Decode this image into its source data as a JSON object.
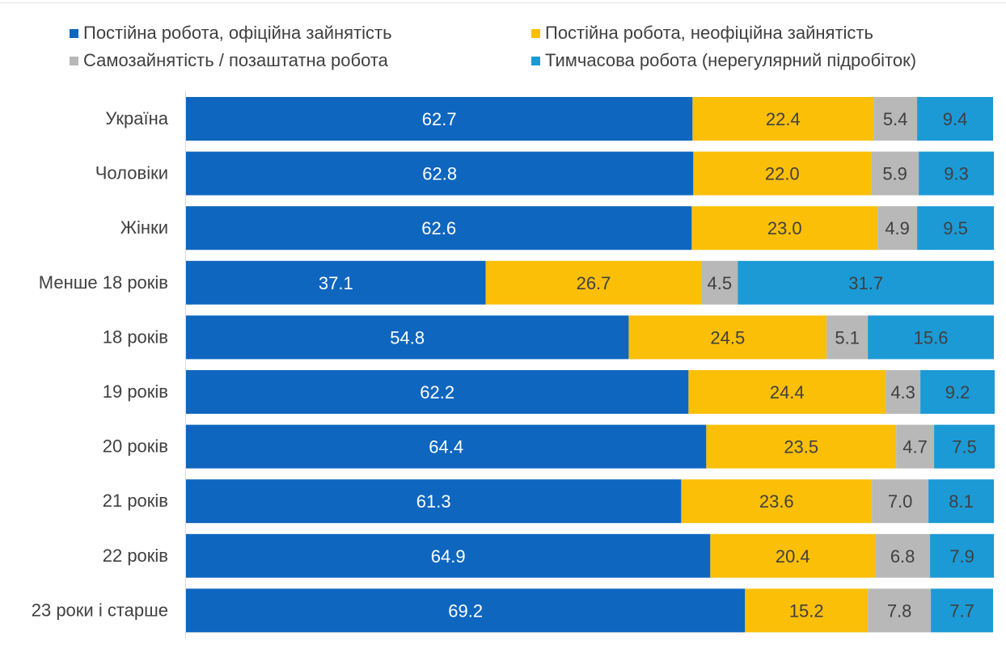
{
  "chart_data": {
    "type": "bar",
    "orientation": "horizontal",
    "stacked": true,
    "percent": true,
    "xlim": [
      0,
      100
    ],
    "grid": false,
    "legend_position": "top",
    "categories": [
      "Україна",
      "Чоловіки",
      "Жінки",
      "Менше 18 років",
      "18 років",
      "19 років",
      "20 років",
      "21 років",
      "22 років",
      "23 роки і старше"
    ],
    "series": [
      {
        "name": "Постійна робота, офіційна зайнятість",
        "color": "#0e66bf",
        "label_color": "#ffffff",
        "values": [
          62.7,
          62.8,
          62.6,
          37.1,
          54.8,
          62.2,
          64.4,
          61.3,
          64.9,
          69.2
        ],
        "labels": [
          "62.7",
          "62.8",
          "62.6",
          "37.1",
          "54.8",
          "62.2",
          "64.4",
          "61.3",
          "64.9",
          "69.2"
        ]
      },
      {
        "name": "Постійна робота, неофіційна зайнятість",
        "color": "#fbbf08",
        "label_color": "#404040",
        "values": [
          22.4,
          22.0,
          23.0,
          26.7,
          24.5,
          24.4,
          23.5,
          23.6,
          20.4,
          15.2
        ],
        "labels": [
          "22.4",
          "22.0",
          "23.0",
          "26.7",
          "24.5",
          "24.4",
          "23.5",
          "23.6",
          "20.4",
          "15.2"
        ]
      },
      {
        "name": "Самозайнятість / позаштатна робота",
        "color": "#b8b8b8",
        "label_color": "#404040",
        "values": [
          5.4,
          5.9,
          4.9,
          4.5,
          5.1,
          4.3,
          4.7,
          7.0,
          6.8,
          7.8
        ],
        "labels": [
          "5.4",
          "5.9",
          "4.9",
          "4.5",
          "5.1",
          "4.3",
          "4.7",
          "7.0",
          "6.8",
          "7.8"
        ]
      },
      {
        "name": "Тимчасова робота (нерегулярний підробіток)",
        "color": "#1b9ad6",
        "label_color": "#404040",
        "values": [
          9.4,
          9.3,
          9.5,
          31.7,
          15.6,
          9.2,
          7.5,
          8.1,
          7.9,
          7.7
        ],
        "labels": [
          "9.4",
          "9.3",
          "9.5",
          "31.7",
          "15.6",
          "9.2",
          "7.5",
          "8.1",
          "7.9",
          "7.7"
        ]
      }
    ]
  }
}
